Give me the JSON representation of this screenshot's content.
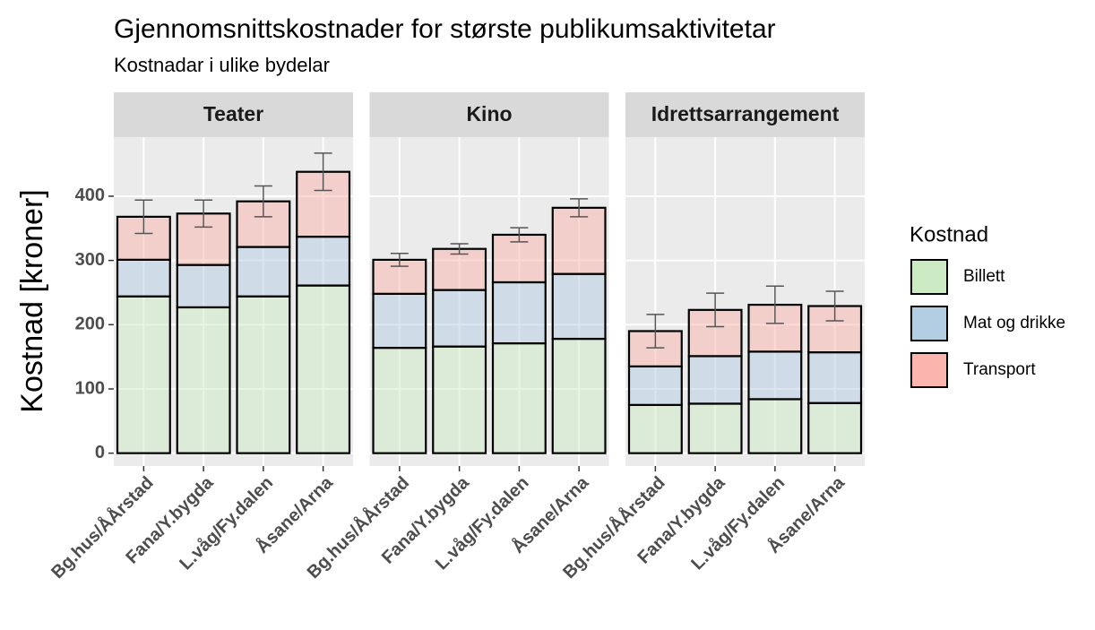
{
  "chart_data": {
    "type": "bar",
    "stacked": true,
    "title": "Gjennomsnittskostnader for største publikumsaktivitetar",
    "subtitle": "Kostnadar i ulike bydelar",
    "ylabel": "Kostnad [kroner]",
    "legend_title": "Kostnad",
    "ylim": [
      -20,
      492
    ],
    "yticks": [
      0,
      100,
      200,
      300,
      400
    ],
    "grid": true,
    "categories": [
      "Bg.hus/ÅÅrstad",
      "Fana/Y.bygda",
      "L.våg/Fy.dalen",
      "Åsane/Arna"
    ],
    "series": [
      {
        "name": "Billett",
        "color": "#ccebc5"
      },
      {
        "name": "Mat og drikke",
        "color": "#b3cde3"
      },
      {
        "name": "Transport",
        "color": "#fbb4ae"
      }
    ],
    "facets": [
      {
        "title": "Teater",
        "values": [
          [
            244,
            227,
            244,
            261
          ],
          [
            57,
            66,
            77,
            76
          ],
          [
            67,
            80,
            71,
            101
          ]
        ],
        "errors": [
          26,
          21,
          24,
          29
        ]
      },
      {
        "title": "Kino",
        "values": [
          [
            164,
            166,
            171,
            178
          ],
          [
            84,
            88,
            95,
            101
          ],
          [
            53,
            64,
            74,
            103
          ]
        ],
        "errors": [
          10,
          8,
          11,
          14
        ]
      },
      {
        "title": "Idrettsarrangement",
        "values": [
          [
            75,
            77,
            84,
            78
          ],
          [
            60,
            74,
            74,
            79
          ],
          [
            55,
            72,
            73,
            72
          ]
        ],
        "errors": [
          26,
          26,
          29,
          23
        ]
      }
    ]
  }
}
